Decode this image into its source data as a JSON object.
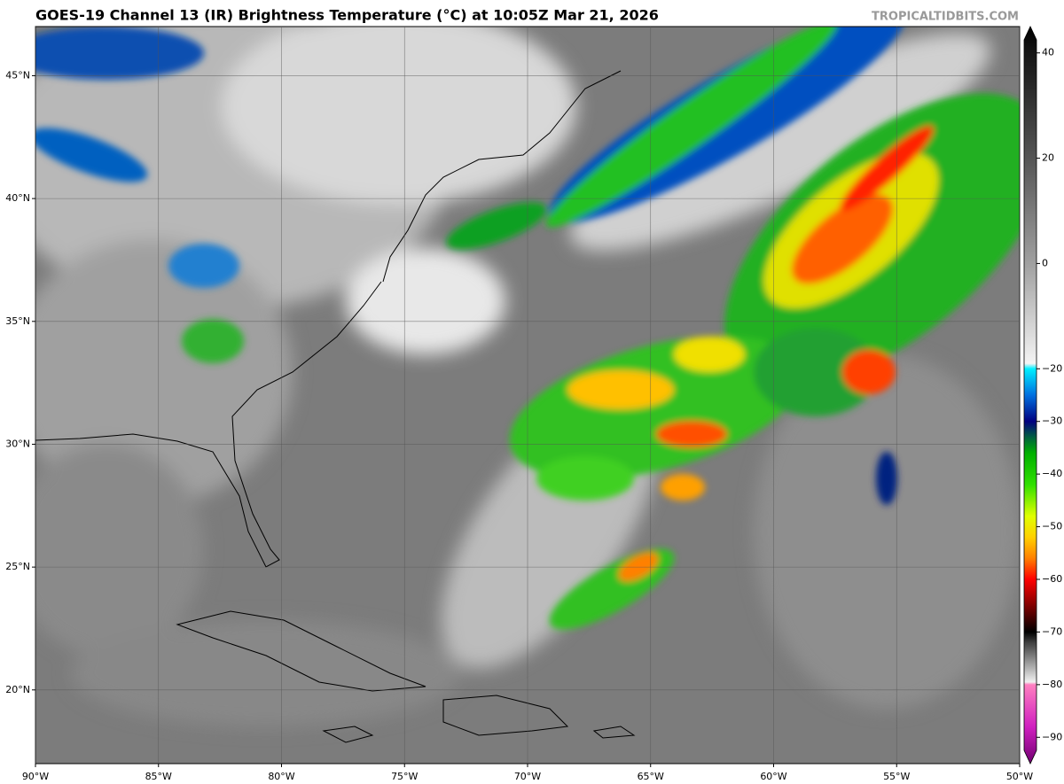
{
  "header": {
    "title": "GOES-19 Channel 13 (IR) Brightness Temperature (°C) at 10:05Z Mar 21, 2026",
    "watermark": "TROPICALTIDBITS.COM"
  },
  "map": {
    "lon_range": [
      -90,
      -50
    ],
    "lat_range": [
      17,
      47
    ],
    "lon_ticks": [
      {
        "value": -90,
        "label": "90°W"
      },
      {
        "value": -85,
        "label": "85°W"
      },
      {
        "value": -80,
        "label": "80°W"
      },
      {
        "value": -75,
        "label": "75°W"
      },
      {
        "value": -70,
        "label": "70°W"
      },
      {
        "value": -65,
        "label": "65°W"
      },
      {
        "value": -60,
        "label": "60°W"
      },
      {
        "value": -55,
        "label": "55°W"
      },
      {
        "value": -50,
        "label": "50°W"
      }
    ],
    "lat_ticks": [
      {
        "value": 20,
        "label": "20°N"
      },
      {
        "value": 25,
        "label": "25°N"
      },
      {
        "value": 30,
        "label": "30°N"
      },
      {
        "value": 35,
        "label": "35°N"
      },
      {
        "value": 40,
        "label": "40°N"
      },
      {
        "value": 45,
        "label": "45°N"
      }
    ],
    "grid": true
  },
  "colorbar": {
    "range": [
      45,
      -95
    ],
    "ticks": [
      40,
      20,
      0,
      {
        "value": -20,
        "label": "−20"
      },
      {
        "value": -30,
        "label": "−30"
      },
      {
        "value": -40,
        "label": "−40"
      },
      {
        "value": -50,
        "label": "−50"
      },
      {
        "value": -60,
        "label": "−60"
      },
      {
        "value": -70,
        "label": "−70"
      },
      {
        "value": -80,
        "label": "−80"
      },
      {
        "value": -90,
        "label": "−90"
      }
    ],
    "stops": [
      {
        "value": 45,
        "color": "#000000"
      },
      {
        "value": 40,
        "color": "#151515"
      },
      {
        "value": 20,
        "color": "#555555"
      },
      {
        "value": 0,
        "color": "#a0a0a0"
      },
      {
        "value": -19,
        "color": "#f4f4f4"
      },
      {
        "value": -20,
        "color": "#00f0ff"
      },
      {
        "value": -25,
        "color": "#0070e0"
      },
      {
        "value": -30,
        "color": "#000080"
      },
      {
        "value": -33,
        "color": "#006040"
      },
      {
        "value": -36,
        "color": "#00b000"
      },
      {
        "value": -42,
        "color": "#30e000"
      },
      {
        "value": -48,
        "color": "#e0ff00"
      },
      {
        "value": -52,
        "color": "#ffd000"
      },
      {
        "value": -56,
        "color": "#ff8000"
      },
      {
        "value": -60,
        "color": "#ff0000"
      },
      {
        "value": -65,
        "color": "#800000"
      },
      {
        "value": -70,
        "color": "#000000"
      },
      {
        "value": -72,
        "color": "#404040"
      },
      {
        "value": -79.5,
        "color": "#f0f0f0"
      },
      {
        "value": -80,
        "color": "#ff80c0"
      },
      {
        "value": -88,
        "color": "#d020c0"
      },
      {
        "value": -95,
        "color": "#700070"
      }
    ]
  }
}
